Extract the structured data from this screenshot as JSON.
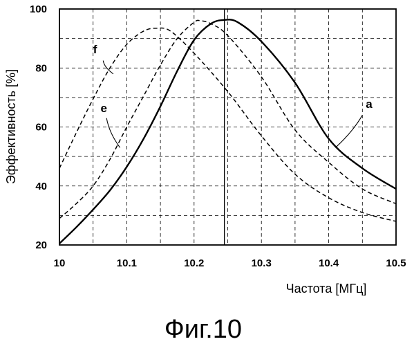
{
  "chart_data": {
    "type": "line",
    "title": "",
    "xlabel": "Частота [МГц]",
    "ylabel": "Эффективность [%]",
    "xlim": [
      10,
      10.5
    ],
    "ylim": [
      20,
      100
    ],
    "x_ticks": [
      "10",
      "10.1",
      "10.2",
      "10.3",
      "10.4",
      "10.5"
    ],
    "y_ticks": [
      "20",
      "40",
      "60",
      "80",
      "100"
    ],
    "grid": true,
    "marker_x": 10.245,
    "series": [
      {
        "name": "a",
        "style": "solid",
        "x": [
          10,
          10.025,
          10.05,
          10.075,
          10.1,
          10.125,
          10.15,
          10.175,
          10.2,
          10.225,
          10.245,
          10.265,
          10.3,
          10.35,
          10.4,
          10.45,
          10.5
        ],
        "y": [
          20.5,
          26,
          32,
          38.5,
          46.5,
          56,
          67,
          79,
          89.5,
          95,
          96.3,
          95.5,
          89,
          75,
          56,
          46,
          39
        ]
      },
      {
        "name": "e",
        "style": "dashed",
        "x": [
          10,
          10.025,
          10.05,
          10.075,
          10.1,
          10.125,
          10.15,
          10.175,
          10.2,
          10.21,
          10.225,
          10.25,
          10.3,
          10.35,
          10.4,
          10.45,
          10.5
        ],
        "y": [
          29,
          34,
          40,
          49,
          60,
          70.5,
          81,
          90,
          95.5,
          96,
          95,
          91,
          77,
          59,
          48,
          39,
          34
        ]
      },
      {
        "name": "f",
        "style": "dashed",
        "x": [
          10,
          10.025,
          10.05,
          10.075,
          10.1,
          10.125,
          10.145,
          10.165,
          10.2,
          10.25,
          10.3,
          10.35,
          10.4,
          10.45,
          10.5
        ],
        "y": [
          46,
          58,
          69.5,
          80,
          88,
          92.5,
          93.5,
          92.5,
          85,
          72,
          57,
          44,
          36,
          31,
          28
        ]
      }
    ],
    "caption": "Фиг.10"
  },
  "colors": {
    "line": "#000000",
    "grid": "#000000",
    "background": "#ffffff"
  }
}
